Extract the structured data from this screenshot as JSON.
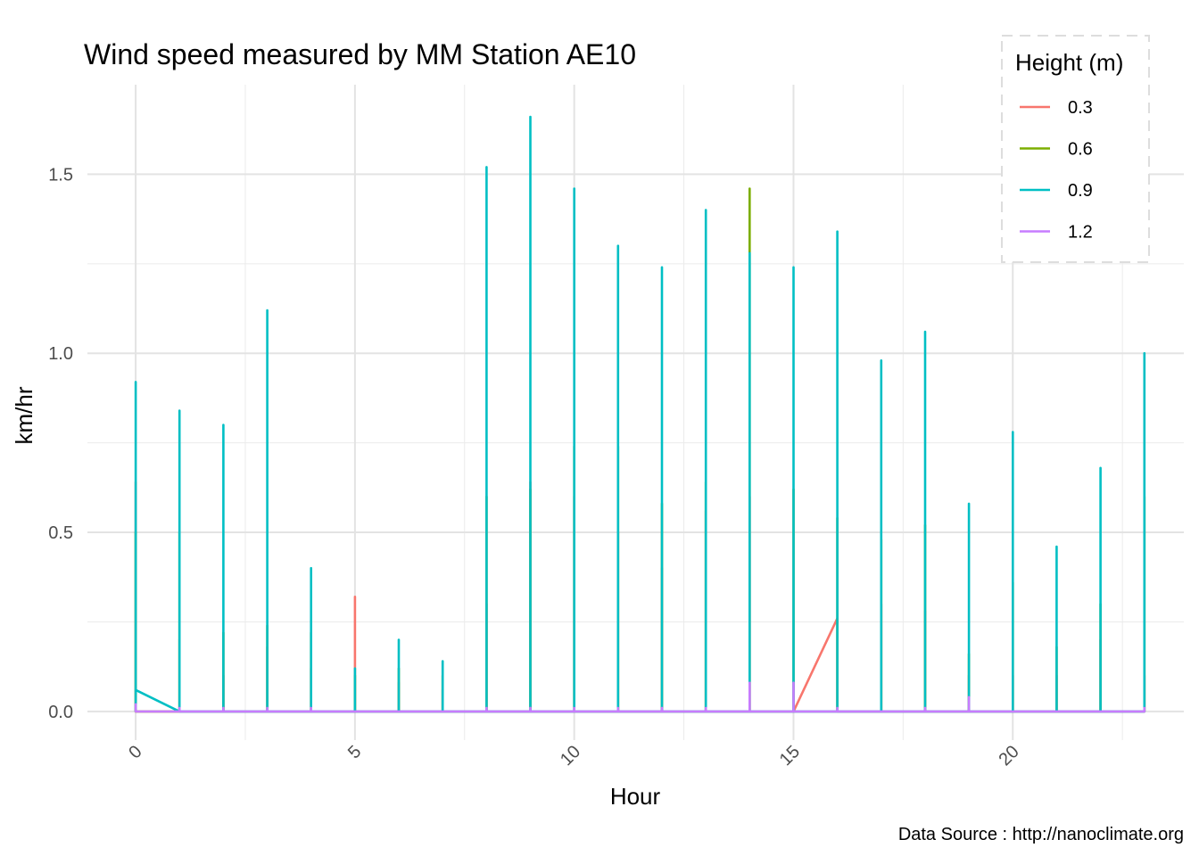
{
  "chart_data": {
    "type": "line",
    "title": "Wind speed measured by MM Station AE10",
    "xlabel": "Hour",
    "ylabel": "km/hr",
    "caption": "Data Source : http://nanoclimate.org",
    "xlim": [
      -1.1,
      23.9
    ],
    "ylim": [
      -0.08,
      1.75
    ],
    "x_ticks": [
      0,
      5,
      10,
      15,
      20
    ],
    "x_tick_labels": [
      "0",
      "5",
      "10",
      "15",
      "20"
    ],
    "y_ticks": [
      0.0,
      0.5,
      1.0,
      1.5
    ],
    "y_tick_labels": [
      "0.0",
      "0.5",
      "1.0",
      "1.5"
    ],
    "grid": true,
    "legend": {
      "title": "Height (m)",
      "position": "top-right",
      "border": "dashed"
    },
    "series": [
      {
        "name": "0.3",
        "color": "#F8766D",
        "points": [
          [
            0,
            0
          ],
          [
            0,
            0.64
          ],
          [
            0,
            0
          ],
          [
            1,
            0
          ],
          [
            1,
            0.2
          ],
          [
            1,
            0
          ],
          [
            2,
            0
          ],
          [
            2,
            0.1
          ],
          [
            2,
            0
          ],
          [
            3,
            0
          ],
          [
            3,
            0.18
          ],
          [
            3,
            0
          ],
          [
            4,
            0
          ],
          [
            4,
            0.12
          ],
          [
            4,
            0
          ],
          [
            5,
            0
          ],
          [
            5,
            0.32
          ],
          [
            5,
            0
          ],
          [
            6,
            0
          ],
          [
            6,
            0.08
          ],
          [
            6,
            0
          ],
          [
            7,
            0
          ],
          [
            7,
            0.06
          ],
          [
            7,
            0
          ],
          [
            8,
            0
          ],
          [
            8,
            0.3
          ],
          [
            8,
            0
          ],
          [
            9,
            0
          ],
          [
            9,
            0.64
          ],
          [
            9,
            0
          ],
          [
            10,
            0
          ],
          [
            10,
            0.6
          ],
          [
            10,
            0
          ],
          [
            11,
            0
          ],
          [
            11,
            0.5
          ],
          [
            11,
            0
          ],
          [
            12,
            0
          ],
          [
            12,
            0.4
          ],
          [
            12,
            0
          ],
          [
            13,
            0
          ],
          [
            13,
            0.56
          ],
          [
            13,
            0
          ],
          [
            14,
            0
          ],
          [
            14,
            0.6
          ],
          [
            14,
            0
          ],
          [
            15,
            0
          ],
          [
            16,
            0.26
          ],
          [
            16,
            0
          ],
          [
            17,
            0
          ],
          [
            17,
            0.3
          ],
          [
            17,
            0
          ],
          [
            18,
            0
          ],
          [
            18,
            0.28
          ],
          [
            18,
            0
          ],
          [
            19,
            0
          ],
          [
            19,
            0.1
          ],
          [
            19,
            0
          ],
          [
            20,
            0
          ],
          [
            20,
            0.1
          ],
          [
            20,
            0
          ],
          [
            21,
            0
          ],
          [
            21,
            0.1
          ],
          [
            21,
            0
          ],
          [
            22,
            0
          ],
          [
            22,
            0.2
          ],
          [
            22,
            0
          ],
          [
            23,
            0
          ],
          [
            23,
            0.1
          ],
          [
            23,
            0
          ]
        ]
      },
      {
        "name": "0.6",
        "color": "#7CAE00",
        "points": [
          [
            0,
            0
          ],
          [
            0,
            0.5
          ],
          [
            0,
            0
          ],
          [
            1,
            0
          ],
          [
            1,
            0.5
          ],
          [
            1,
            0
          ],
          [
            2,
            0
          ],
          [
            2,
            0.22
          ],
          [
            2,
            0
          ],
          [
            3,
            0
          ],
          [
            3,
            0.24
          ],
          [
            3,
            0
          ],
          [
            4,
            0
          ],
          [
            4,
            0.22
          ],
          [
            4,
            0
          ],
          [
            5,
            0
          ],
          [
            5,
            0.1
          ],
          [
            5,
            0
          ],
          [
            6,
            0
          ],
          [
            6,
            0.12
          ],
          [
            6,
            0
          ],
          [
            7,
            0
          ],
          [
            7,
            0.1
          ],
          [
            7,
            0
          ],
          [
            8,
            0
          ],
          [
            8,
            0.6
          ],
          [
            8,
            0
          ],
          [
            9,
            0
          ],
          [
            9,
            0.62
          ],
          [
            9,
            0
          ],
          [
            10,
            0
          ],
          [
            10,
            0.74
          ],
          [
            10,
            0
          ],
          [
            11,
            0
          ],
          [
            11,
            0.74
          ],
          [
            11,
            0
          ],
          [
            12,
            0
          ],
          [
            12,
            0.58
          ],
          [
            12,
            0
          ],
          [
            13,
            0
          ],
          [
            13,
            0.64
          ],
          [
            13,
            0
          ],
          [
            14,
            0
          ],
          [
            14,
            1.46
          ],
          [
            14,
            0
          ],
          [
            15,
            0
          ],
          [
            15,
            0.62
          ],
          [
            15,
            0
          ],
          [
            16,
            0
          ],
          [
            16,
            0.54
          ],
          [
            16,
            0
          ],
          [
            17,
            0
          ],
          [
            17,
            0.48
          ],
          [
            17,
            0
          ],
          [
            18,
            0
          ],
          [
            18,
            0.52
          ],
          [
            18,
            0
          ],
          [
            19,
            0
          ],
          [
            19,
            0.16
          ],
          [
            19,
            0
          ],
          [
            20,
            0
          ],
          [
            20,
            0.36
          ],
          [
            20,
            0
          ],
          [
            21,
            0
          ],
          [
            21,
            0.18
          ],
          [
            21,
            0
          ],
          [
            22,
            0
          ],
          [
            22,
            0.3
          ],
          [
            22,
            0
          ],
          [
            23,
            0
          ],
          [
            23,
            0.6
          ],
          [
            23,
            0
          ]
        ]
      },
      {
        "name": "0.9",
        "color": "#00BFC4",
        "points": [
          [
            0,
            0
          ],
          [
            0,
            0.92
          ],
          [
            0,
            0.06
          ],
          [
            1,
            0
          ],
          [
            1,
            0.84
          ],
          [
            1,
            0
          ],
          [
            2,
            0
          ],
          [
            2,
            0.8
          ],
          [
            2,
            0
          ],
          [
            3,
            0
          ],
          [
            3,
            1.12
          ],
          [
            3,
            0
          ],
          [
            4,
            0
          ],
          [
            4,
            0.4
          ],
          [
            4,
            0
          ],
          [
            5,
            0
          ],
          [
            5,
            0.12
          ],
          [
            5,
            0
          ],
          [
            6,
            0
          ],
          [
            6,
            0.2
          ],
          [
            6,
            0
          ],
          [
            7,
            0
          ],
          [
            7,
            0.14
          ],
          [
            7,
            0
          ],
          [
            8,
            0
          ],
          [
            8,
            1.52
          ],
          [
            8,
            0
          ],
          [
            9,
            0
          ],
          [
            9,
            1.66
          ],
          [
            9,
            0
          ],
          [
            10,
            0
          ],
          [
            10,
            1.46
          ],
          [
            10,
            0
          ],
          [
            11,
            0
          ],
          [
            11,
            1.3
          ],
          [
            11,
            0
          ],
          [
            12,
            0
          ],
          [
            12,
            1.24
          ],
          [
            12,
            0
          ],
          [
            13,
            0
          ],
          [
            13,
            1.4
          ],
          [
            13,
            0
          ],
          [
            14,
            0
          ],
          [
            14,
            1.28
          ],
          [
            14,
            0
          ],
          [
            15,
            0
          ],
          [
            15,
            1.24
          ],
          [
            15,
            0
          ],
          [
            16,
            0
          ],
          [
            16,
            1.34
          ],
          [
            16,
            0
          ],
          [
            17,
            0
          ],
          [
            17,
            0.98
          ],
          [
            17,
            0
          ],
          [
            18,
            0
          ],
          [
            18,
            1.06
          ],
          [
            18,
            0
          ],
          [
            19,
            0
          ],
          [
            19,
            0.58
          ],
          [
            19,
            0
          ],
          [
            20,
            0
          ],
          [
            20,
            0.78
          ],
          [
            20,
            0
          ],
          [
            21,
            0
          ],
          [
            21,
            0.46
          ],
          [
            21,
            0
          ],
          [
            22,
            0
          ],
          [
            22,
            0.68
          ],
          [
            22,
            0
          ],
          [
            23,
            0
          ],
          [
            23,
            1.0
          ],
          [
            23,
            0
          ]
        ]
      },
      {
        "name": "1.2",
        "color": "#C77CFF",
        "points": [
          [
            0,
            0
          ],
          [
            0,
            0.02
          ],
          [
            0,
            0
          ],
          [
            1,
            0
          ],
          [
            1,
            0.01
          ],
          [
            1,
            0
          ],
          [
            2,
            0
          ],
          [
            2,
            0.01
          ],
          [
            2,
            0
          ],
          [
            3,
            0
          ],
          [
            3,
            0.01
          ],
          [
            3,
            0
          ],
          [
            4,
            0
          ],
          [
            4,
            0.01
          ],
          [
            4,
            0
          ],
          [
            5,
            0
          ],
          [
            6,
            0
          ],
          [
            7,
            0
          ],
          [
            8,
            0
          ],
          [
            8,
            0.01
          ],
          [
            8,
            0
          ],
          [
            9,
            0
          ],
          [
            9,
            0.01
          ],
          [
            9,
            0
          ],
          [
            10,
            0
          ],
          [
            10,
            0.01
          ],
          [
            10,
            0
          ],
          [
            11,
            0
          ],
          [
            11,
            0.01
          ],
          [
            11,
            0
          ],
          [
            12,
            0
          ],
          [
            12,
            0.01
          ],
          [
            12,
            0
          ],
          [
            13,
            0
          ],
          [
            13,
            0.01
          ],
          [
            13,
            0
          ],
          [
            14,
            0
          ],
          [
            14,
            0.08
          ],
          [
            14,
            0
          ],
          [
            15,
            0
          ],
          [
            15,
            0.08
          ],
          [
            15,
            0
          ],
          [
            16,
            0
          ],
          [
            16,
            0.01
          ],
          [
            16,
            0
          ],
          [
            17,
            0
          ],
          [
            18,
            0
          ],
          [
            18,
            0.01
          ],
          [
            18,
            0
          ],
          [
            19,
            0
          ],
          [
            19,
            0.04
          ],
          [
            19,
            0
          ],
          [
            20,
            0
          ],
          [
            21,
            0
          ],
          [
            22,
            0
          ],
          [
            23,
            0
          ],
          [
            23,
            0.01
          ],
          [
            23,
            0
          ]
        ]
      }
    ]
  }
}
